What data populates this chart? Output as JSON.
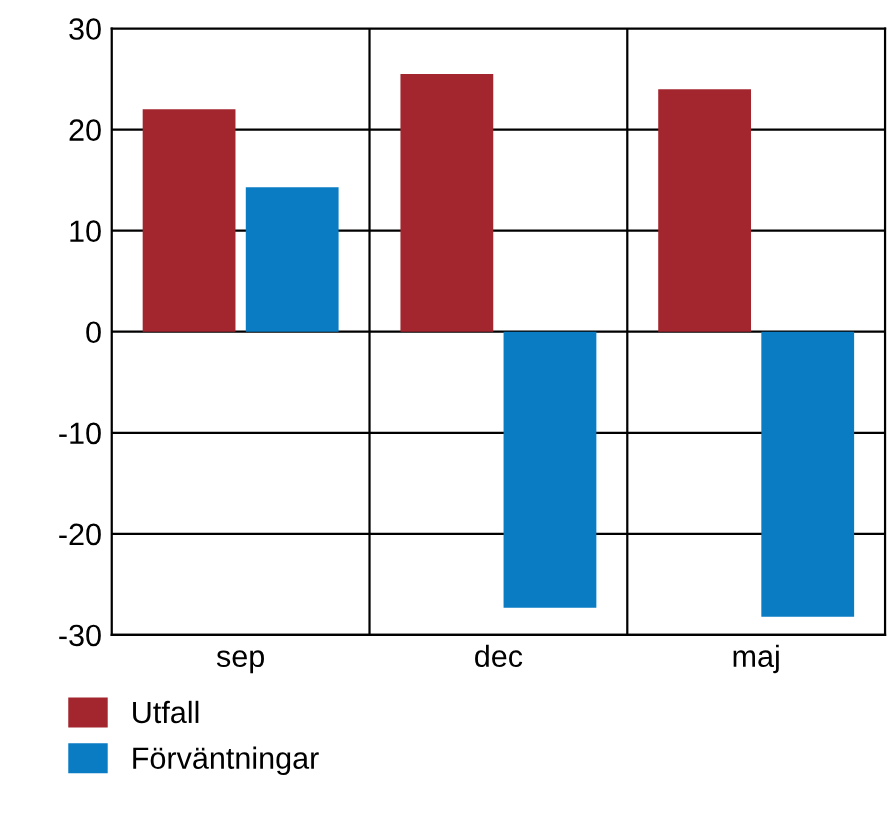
{
  "chart_data": {
    "type": "bar",
    "categories": [
      "sep",
      "dec",
      "maj"
    ],
    "series": [
      {
        "name": "Utfall",
        "color": "#a3262f",
        "values": [
          22,
          25.5,
          24
        ]
      },
      {
        "name": "Förväntningar",
        "color": "#0a7cc4",
        "values": [
          14.3,
          -27.3,
          -28.2
        ]
      }
    ],
    "ylim": [
      -30,
      30
    ],
    "yticks": [
      {
        "value": -30,
        "label": "-30"
      },
      {
        "value": -20,
        "label": "-20"
      },
      {
        "value": -10,
        "label": "-10"
      },
      0,
      10,
      20,
      30
    ],
    "grid": true,
    "legend": "bottom"
  }
}
